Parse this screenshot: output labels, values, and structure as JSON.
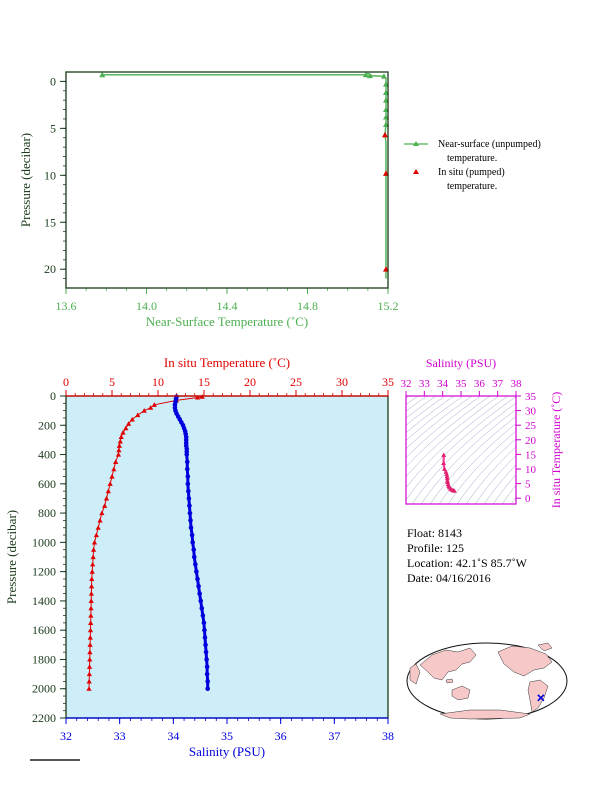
{
  "colors": {
    "near_surface": "#4caf50",
    "in_situ": "#e00000",
    "salinity": "#0000dd",
    "ts_accent": "#d000d0",
    "panel_bg": "#cdeef8",
    "land": "#f7c8c8",
    "ocean": "#ffffff",
    "axis_dark": "#1a3a1a"
  },
  "chart_data": [
    {
      "type": "line",
      "id": "near-surface",
      "xlabel": "Near-Surface Temperature (˚C)",
      "ylabel": "Pressure (decibar)",
      "xlim": [
        13.6,
        15.2
      ],
      "ylim": [
        22,
        -1
      ],
      "xticks": [
        "13.6",
        "14.0",
        "14.4",
        "14.8",
        "15.2"
      ],
      "yticks": [
        "0",
        "5",
        "10",
        "15",
        "20"
      ],
      "series": [
        {
          "name": "Near-surface (unpumped) temperature.",
          "marker": "triangle",
          "points": [
            [
              13.78,
              -0.7
            ],
            [
              15.09,
              -0.7
            ],
            [
              15.1,
              -0.85
            ],
            [
              15.12,
              -0.6
            ],
            [
              15.18,
              -0.55
            ],
            [
              15.19,
              -0.3
            ],
            [
              15.19,
              0.5
            ],
            [
              15.19,
              1.5
            ],
            [
              15.19,
              2.5
            ],
            [
              15.19,
              3.5
            ],
            [
              15.19,
              4.5
            ],
            [
              15.185,
              5.7
            ],
            [
              15.19,
              6.5
            ],
            [
              15.19,
              8.0
            ],
            [
              15.19,
              10.0
            ],
            [
              15.19,
              12.0
            ],
            [
              15.19,
              14.0
            ],
            [
              15.19,
              16.0
            ],
            [
              15.19,
              18.0
            ],
            [
              15.19,
              20.0
            ],
            [
              15.19,
              21.0
            ]
          ],
          "markers_at": [
            [
              13.78,
              -0.7
            ],
            [
              15.09,
              -0.7
            ],
            [
              15.11,
              -0.6
            ],
            [
              15.18,
              -0.55
            ],
            [
              15.19,
              0.3
            ],
            [
              15.19,
              1.2
            ],
            [
              15.19,
              2.0
            ],
            [
              15.19,
              3.0
            ],
            [
              15.19,
              3.8
            ],
            [
              15.19,
              4.6
            ]
          ]
        },
        {
          "name": "In situ (pumped) temperature.",
          "marker": "triangle",
          "points": [
            [
              15.185,
              5.7
            ],
            [
              15.19,
              9.8
            ],
            [
              15.19,
              20.0
            ]
          ]
        }
      ],
      "legend": {
        "near_surface": [
          "Near-surface (unpumped)",
          "temperature."
        ],
        "in_situ": [
          "In situ (pumped)",
          "temperature."
        ]
      }
    },
    {
      "type": "line",
      "id": "profile",
      "top_xlabel": "In situ Temperature (˚C)",
      "bottom_xlabel": "Salinity (PSU)",
      "ylabel": "Pressure (decibar)",
      "temp_lim": [
        0,
        35
      ],
      "sal_lim": [
        32,
        38
      ],
      "ylim": [
        2200,
        0
      ],
      "temp_ticks": [
        "0",
        "5",
        "10",
        "15",
        "20",
        "25",
        "30",
        "35"
      ],
      "sal_ticks": [
        "32",
        "33",
        "34",
        "35",
        "36",
        "37",
        "38"
      ],
      "yticks": [
        "0",
        "200",
        "400",
        "600",
        "800",
        "1000",
        "1200",
        "1400",
        "1600",
        "1800",
        "2000",
        "2200"
      ],
      "temperature": {
        "name": "In situ Temperature",
        "points": [
          [
            14.8,
            5
          ],
          [
            14.3,
            10
          ],
          [
            12.0,
            30
          ],
          [
            9.6,
            60
          ],
          [
            9.2,
            80
          ],
          [
            8.5,
            100
          ],
          [
            7.8,
            130
          ],
          [
            7.2,
            160
          ],
          [
            6.8,
            190
          ],
          [
            6.5,
            220
          ],
          [
            6.2,
            250
          ],
          [
            6.0,
            280
          ],
          [
            5.9,
            310
          ],
          [
            5.8,
            340
          ],
          [
            5.75,
            370
          ],
          [
            5.7,
            400
          ],
          [
            5.4,
            450
          ],
          [
            5.2,
            500
          ],
          [
            5.0,
            550
          ],
          [
            4.8,
            600
          ],
          [
            4.6,
            650
          ],
          [
            4.4,
            700
          ],
          [
            4.2,
            750
          ],
          [
            3.9,
            800
          ],
          [
            3.7,
            850
          ],
          [
            3.5,
            900
          ],
          [
            3.3,
            950
          ],
          [
            3.1,
            1000
          ],
          [
            3.0,
            1050
          ],
          [
            2.95,
            1100
          ],
          [
            2.9,
            1150
          ],
          [
            2.85,
            1200
          ],
          [
            2.8,
            1250
          ],
          [
            2.78,
            1300
          ],
          [
            2.76,
            1350
          ],
          [
            2.74,
            1400
          ],
          [
            2.72,
            1450
          ],
          [
            2.7,
            1500
          ],
          [
            2.68,
            1550
          ],
          [
            2.66,
            1600
          ],
          [
            2.64,
            1650
          ],
          [
            2.62,
            1700
          ],
          [
            2.6,
            1750
          ],
          [
            2.58,
            1800
          ],
          [
            2.56,
            1850
          ],
          [
            2.54,
            1900
          ],
          [
            2.52,
            1950
          ],
          [
            2.5,
            2000
          ]
        ]
      },
      "salinity": {
        "name": "Salinity",
        "points": [
          [
            34.06,
            5
          ],
          [
            34.05,
            20
          ],
          [
            34.04,
            40
          ],
          [
            34.03,
            60
          ],
          [
            34.03,
            80
          ],
          [
            34.04,
            100
          ],
          [
            34.06,
            120
          ],
          [
            34.09,
            140
          ],
          [
            34.12,
            160
          ],
          [
            34.15,
            180
          ],
          [
            34.18,
            200
          ],
          [
            34.2,
            220
          ],
          [
            34.22,
            240
          ],
          [
            34.23,
            260
          ],
          [
            34.24,
            280
          ],
          [
            34.24,
            300
          ],
          [
            34.24,
            320
          ],
          [
            34.24,
            340
          ],
          [
            34.25,
            360
          ],
          [
            34.25,
            380
          ],
          [
            34.25,
            400
          ],
          [
            34.26,
            450
          ],
          [
            34.26,
            500
          ],
          [
            34.27,
            550
          ],
          [
            34.27,
            600
          ],
          [
            34.28,
            650
          ],
          [
            34.29,
            700
          ],
          [
            34.3,
            750
          ],
          [
            34.31,
            800
          ],
          [
            34.32,
            850
          ],
          [
            34.33,
            900
          ],
          [
            34.35,
            950
          ],
          [
            34.36,
            1000
          ],
          [
            34.38,
            1050
          ],
          [
            34.39,
            1100
          ],
          [
            34.41,
            1150
          ],
          [
            34.43,
            1200
          ],
          [
            34.45,
            1250
          ],
          [
            34.47,
            1300
          ],
          [
            34.49,
            1350
          ],
          [
            34.51,
            1400
          ],
          [
            34.53,
            1450
          ],
          [
            34.55,
            1500
          ],
          [
            34.57,
            1550
          ],
          [
            34.58,
            1600
          ],
          [
            34.59,
            1650
          ],
          [
            34.6,
            1700
          ],
          [
            34.61,
            1750
          ],
          [
            34.62,
            1800
          ],
          [
            34.63,
            1850
          ],
          [
            34.63,
            1900
          ],
          [
            34.64,
            1950
          ],
          [
            34.64,
            2000
          ]
        ]
      }
    },
    {
      "type": "scatter",
      "id": "ts-diagram",
      "xlabel": "Salinity (PSU)",
      "ylabel": "In situ Temperature (˚C)",
      "xlim": [
        32,
        38
      ],
      "ylim": [
        -2,
        35
      ],
      "xticks": [
        "32",
        "33",
        "34",
        "35",
        "36",
        "37",
        "38"
      ],
      "yticks": [
        "0",
        "5",
        "10",
        "15",
        "20",
        "25",
        "30",
        "35"
      ],
      "points": [
        [
          34.06,
          14.8
        ],
        [
          34.05,
          12.0
        ],
        [
          34.1,
          10.0
        ],
        [
          34.18,
          9.0
        ],
        [
          34.22,
          8.2
        ],
        [
          34.24,
          7.5
        ],
        [
          34.25,
          6.8
        ],
        [
          34.26,
          6.0
        ],
        [
          34.27,
          5.5
        ],
        [
          34.3,
          4.8
        ],
        [
          34.33,
          4.2
        ],
        [
          34.37,
          3.7
        ],
        [
          34.43,
          3.2
        ],
        [
          34.5,
          2.9
        ],
        [
          34.58,
          2.7
        ],
        [
          34.64,
          2.5
        ]
      ]
    }
  ],
  "info": {
    "float": "Float:  8143",
    "profile": "Profile:  125",
    "location": "Location:  42.1˚S  85.7˚W",
    "date": "Date:  04/16/2016"
  },
  "map": {
    "marker_lat": -42.1,
    "marker_lon": -85.7
  }
}
